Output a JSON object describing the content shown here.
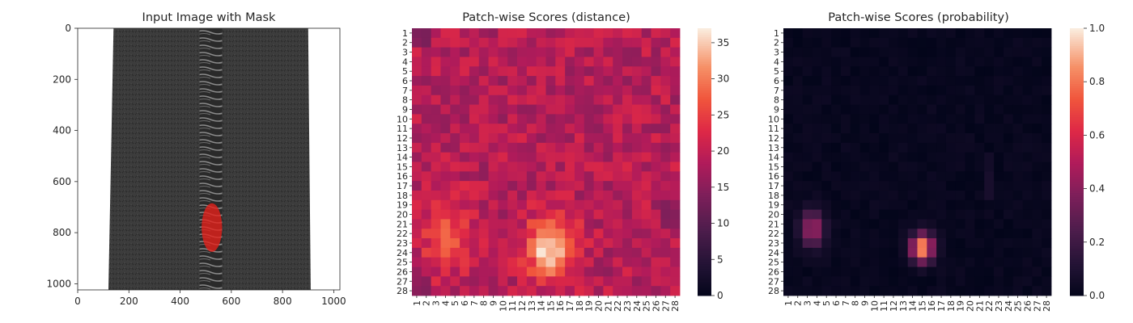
{
  "chart_data": [
    {
      "type": "image",
      "title": "Input Image with Mask",
      "xlim": [
        0,
        1024
      ],
      "ylim": [
        1024,
        0
      ],
      "x_ticks": [
        0,
        200,
        400,
        600,
        800,
        1000
      ],
      "y_ticks": [
        0,
        200,
        400,
        600,
        800,
        1000
      ],
      "image_extent_x": [
        0,
        1024
      ],
      "image_extent_y": [
        0,
        1024
      ],
      "fabric_left": [
        140,
        120
      ],
      "fabric_right": [
        900,
        910
      ],
      "zipper_x": 520,
      "mask": {
        "color": "#e8201a",
        "cx": 524,
        "cy": 780,
        "rx": 40,
        "ry": 95
      }
    },
    {
      "type": "heatmap",
      "title": "Patch-wise Scores (distance)",
      "rows": 28,
      "cols": 28,
      "row_labels": [
        "1",
        "2",
        "3",
        "4",
        "5",
        "6",
        "7",
        "8",
        "9",
        "10",
        "11",
        "12",
        "13",
        "14",
        "15",
        "16",
        "17",
        "18",
        "19",
        "20",
        "21",
        "22",
        "23",
        "24",
        "25",
        "26",
        "27",
        "28"
      ],
      "col_labels": [
        "1",
        "2",
        "3",
        "4",
        "5",
        "6",
        "7",
        "8",
        "9",
        "10",
        "11",
        "12",
        "13",
        "14",
        "15",
        "16",
        "17",
        "18",
        "19",
        "20",
        "21",
        "22",
        "23",
        "24",
        "25",
        "26",
        "27",
        "28"
      ],
      "colorbar_ticks": [
        0,
        5,
        10,
        15,
        20,
        25,
        30,
        35
      ],
      "vmin": 0,
      "vmax": 37,
      "colormap": "rocket",
      "base_value": 19,
      "hotspots": [
        {
          "row": 22,
          "col": 4,
          "sigma_r": 2.8,
          "sigma_c": 1.6,
          "amp": 9
        },
        {
          "row": 23.5,
          "col": 15,
          "sigma_r": 2.2,
          "sigma_c": 1.8,
          "amp": 17
        }
      ],
      "low_spots": [
        {
          "row": 1.5,
          "col": 1.5,
          "value": 13
        },
        {
          "row": 27.5,
          "col": 1.5,
          "value": 14
        },
        {
          "row": 20,
          "col": 28,
          "value": 14
        }
      ]
    },
    {
      "type": "heatmap",
      "title": "Patch-wise Scores (probability)",
      "rows": 28,
      "cols": 28,
      "row_labels": [
        "1",
        "2",
        "3",
        "4",
        "5",
        "6",
        "7",
        "8",
        "9",
        "10",
        "11",
        "12",
        "13",
        "14",
        "15",
        "16",
        "17",
        "18",
        "19",
        "20",
        "21",
        "22",
        "23",
        "24",
        "25",
        "26",
        "27",
        "28"
      ],
      "col_labels": [
        "1",
        "2",
        "3",
        "4",
        "5",
        "6",
        "7",
        "8",
        "9",
        "10",
        "11",
        "12",
        "13",
        "14",
        "15",
        "16",
        "17",
        "18",
        "19",
        "20",
        "21",
        "22",
        "23",
        "24",
        "25",
        "26",
        "27",
        "28"
      ],
      "colorbar_ticks": [
        0.0,
        0.2,
        0.4,
        0.6,
        0.8,
        1.0
      ],
      "colorbar_tick_labels": [
        "0.0",
        "0.2",
        "0.4",
        "0.6",
        "0.8",
        "1.0"
      ],
      "vmin": 0,
      "vmax": 1,
      "colormap": "rocket",
      "hotspots": [
        {
          "row": 21.5,
          "col": 3.5,
          "sigma_r": 1.3,
          "sigma_c": 0.9,
          "amp": 0.45
        },
        {
          "row": 23.5,
          "col": 15,
          "sigma_r": 1.0,
          "sigma_c": 0.8,
          "amp": 0.9
        }
      ],
      "faint_spots": [
        {
          "row": 17,
          "col": 22,
          "value": 0.08
        },
        {
          "row": 15,
          "col": 22,
          "value": 0.06
        }
      ]
    }
  ]
}
